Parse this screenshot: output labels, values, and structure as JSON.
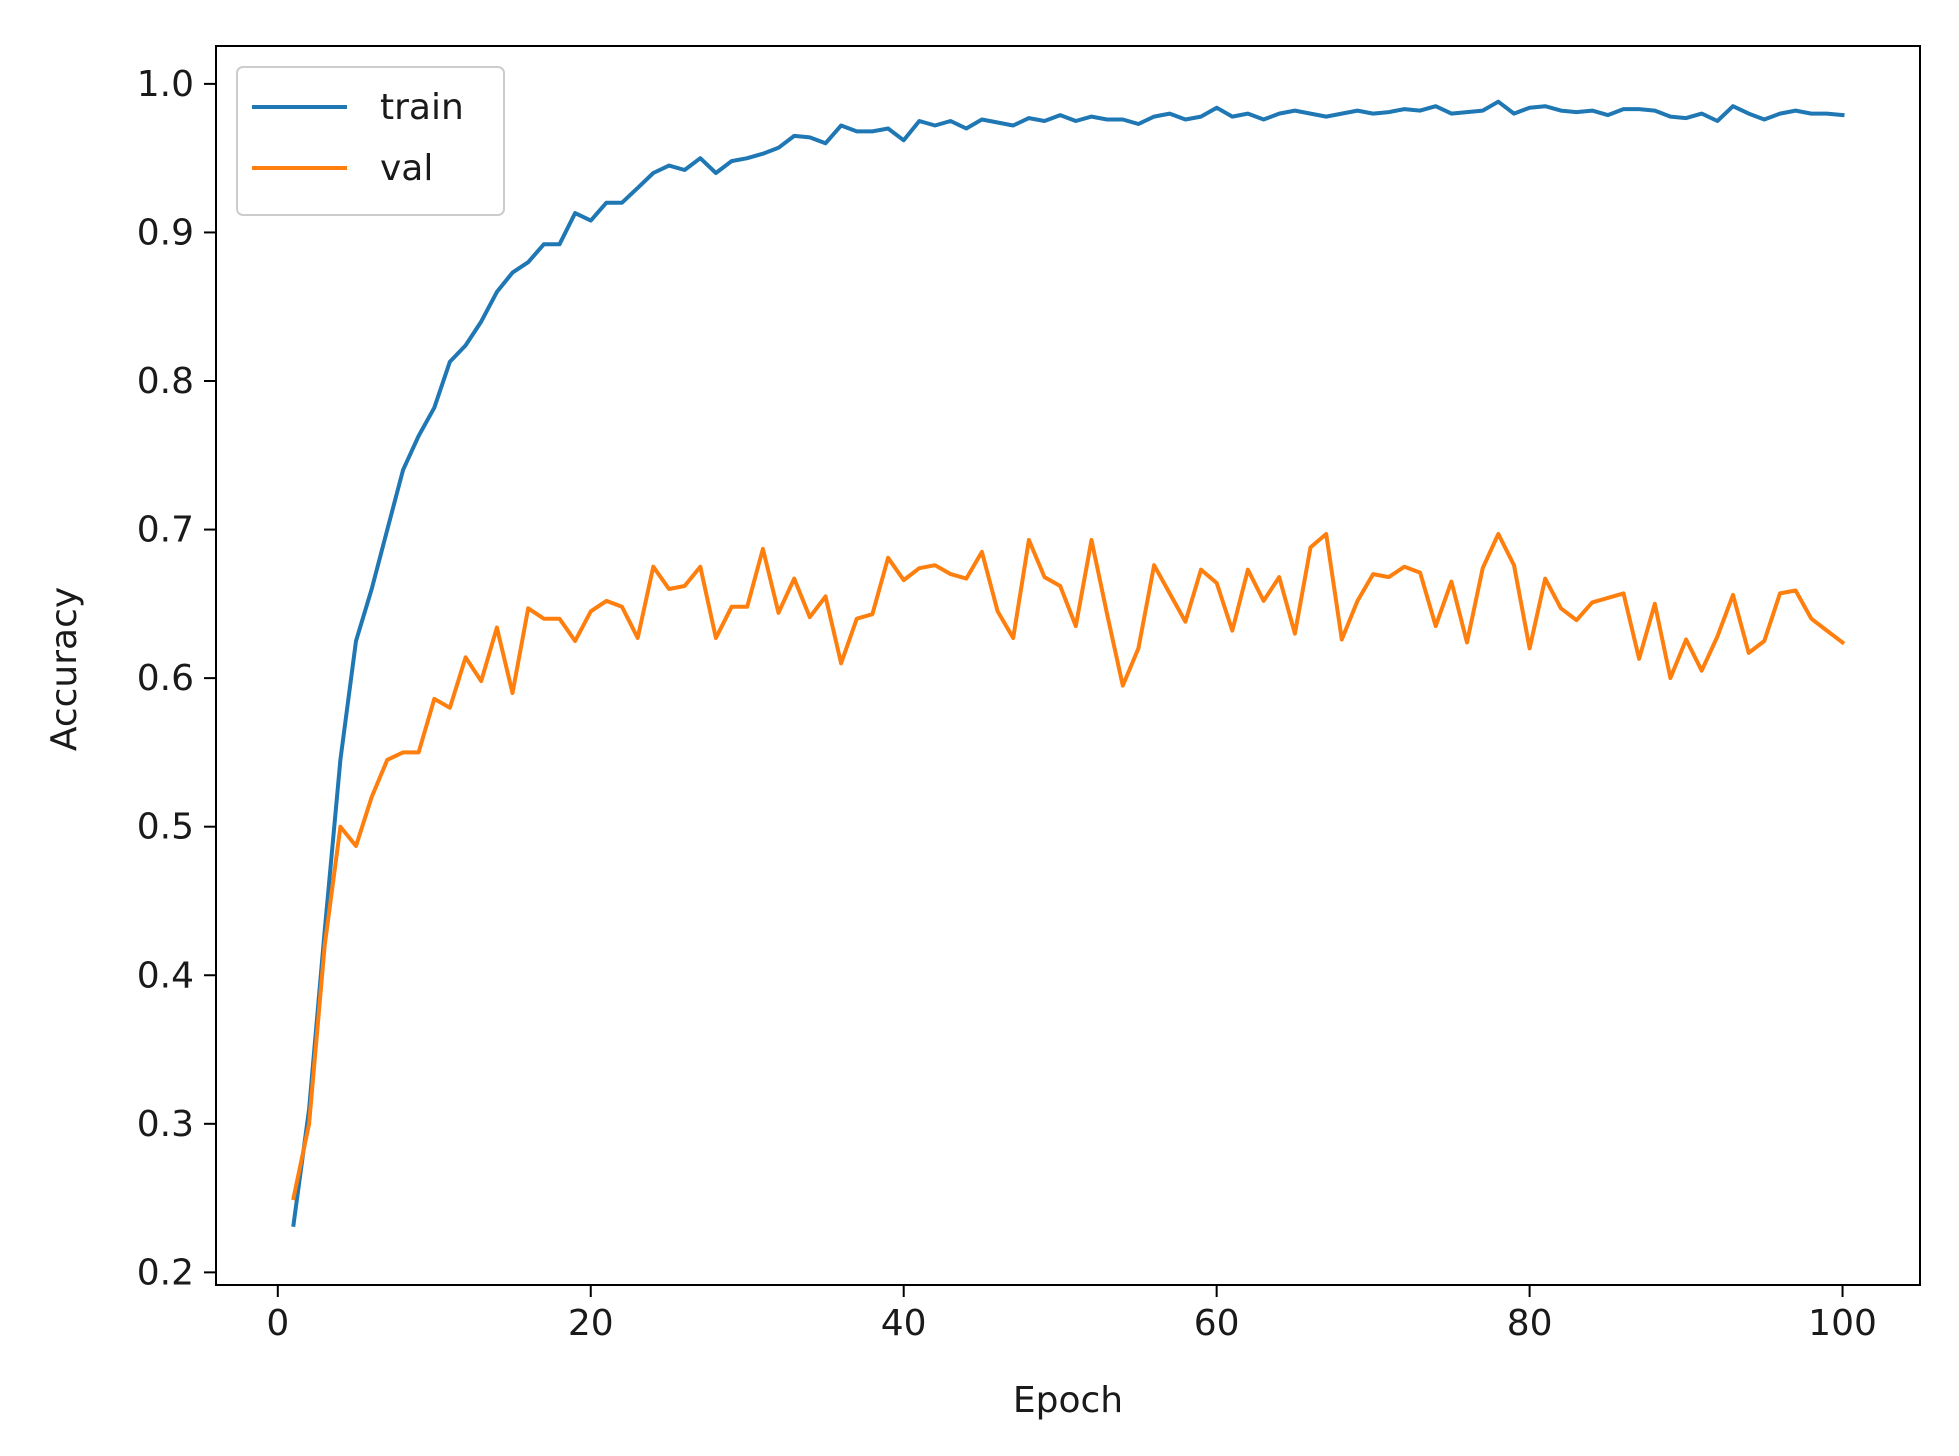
{
  "chart_data": {
    "type": "line",
    "title": "",
    "xlabel": "Epoch",
    "ylabel": "Accuracy",
    "xlim": [
      -3.95,
      104.95
    ],
    "ylim": [
      0.1915,
      1.0255
    ],
    "x_ticks": [
      0,
      20,
      40,
      60,
      80,
      100
    ],
    "y_ticks": [
      0.2,
      0.3,
      0.4,
      0.5,
      0.6,
      0.7,
      0.8,
      0.9,
      1.0
    ],
    "x_tick_labels": [
      "0",
      "20",
      "40",
      "60",
      "80",
      "100"
    ],
    "y_tick_labels": [
      "0.2",
      "0.3",
      "0.4",
      "0.5",
      "0.6",
      "0.7",
      "0.8",
      "0.9",
      "1.0"
    ],
    "grid": false,
    "legend_position": "top-left",
    "x": [
      1,
      2,
      3,
      4,
      5,
      6,
      7,
      8,
      9,
      10,
      11,
      12,
      13,
      14,
      15,
      16,
      17,
      18,
      19,
      20,
      21,
      22,
      23,
      24,
      25,
      26,
      27,
      28,
      29,
      30,
      31,
      32,
      33,
      34,
      35,
      36,
      37,
      38,
      39,
      40,
      41,
      42,
      43,
      44,
      45,
      46,
      47,
      48,
      49,
      50,
      51,
      52,
      53,
      54,
      55,
      56,
      57,
      58,
      59,
      60,
      61,
      62,
      63,
      64,
      65,
      66,
      67,
      68,
      69,
      70,
      71,
      72,
      73,
      74,
      75,
      76,
      77,
      78,
      79,
      80,
      81,
      82,
      83,
      84,
      85,
      86,
      87,
      88,
      89,
      90,
      91,
      92,
      93,
      94,
      95,
      96,
      97,
      98,
      99,
      100
    ],
    "series": [
      {
        "name": "train",
        "color": "#1f77b4",
        "values": [
          0.232,
          0.31,
          0.43,
          0.545,
          0.625,
          0.66,
          0.7,
          0.74,
          0.763,
          0.782,
          0.813,
          0.824,
          0.84,
          0.86,
          0.873,
          0.88,
          0.892,
          0.892,
          0.913,
          0.908,
          0.92,
          0.92,
          0.93,
          0.94,
          0.945,
          0.942,
          0.95,
          0.94,
          0.948,
          0.95,
          0.953,
          0.957,
          0.965,
          0.964,
          0.96,
          0.972,
          0.968,
          0.968,
          0.97,
          0.962,
          0.975,
          0.972,
          0.975,
          0.97,
          0.976,
          0.974,
          0.972,
          0.977,
          0.975,
          0.979,
          0.975,
          0.978,
          0.976,
          0.976,
          0.973,
          0.978,
          0.98,
          0.976,
          0.978,
          0.984,
          0.978,
          0.98,
          0.976,
          0.98,
          0.982,
          0.98,
          0.978,
          0.98,
          0.982,
          0.98,
          0.981,
          0.983,
          0.982,
          0.985,
          0.98,
          0.981,
          0.982,
          0.988,
          0.98,
          0.984,
          0.985,
          0.982,
          0.981,
          0.982,
          0.979,
          0.983,
          0.983,
          0.982,
          0.978,
          0.977,
          0.98,
          0.975,
          0.985,
          0.98,
          0.976,
          0.98,
          0.982,
          0.98,
          0.98,
          0.979
        ]
      },
      {
        "name": "val",
        "color": "#ff7f0e",
        "values": [
          0.25,
          0.3,
          0.42,
          0.5,
          0.487,
          0.52,
          0.545,
          0.55,
          0.55,
          0.586,
          0.58,
          0.614,
          0.598,
          0.634,
          0.59,
          0.647,
          0.64,
          0.64,
          0.625,
          0.645,
          0.652,
          0.648,
          0.627,
          0.675,
          0.66,
          0.662,
          0.675,
          0.627,
          0.648,
          0.648,
          0.687,
          0.644,
          0.667,
          0.641,
          0.655,
          0.61,
          0.64,
          0.643,
          0.681,
          0.666,
          0.674,
          0.676,
          0.67,
          0.667,
          0.685,
          0.645,
          0.627,
          0.693,
          0.668,
          0.662,
          0.635,
          0.693,
          0.643,
          0.595,
          0.62,
          0.676,
          0.657,
          0.638,
          0.673,
          0.664,
          0.632,
          0.673,
          0.652,
          0.668,
          0.63,
          0.688,
          0.697,
          0.626,
          0.652,
          0.67,
          0.668,
          0.675,
          0.671,
          0.635,
          0.665,
          0.624,
          0.674,
          0.697,
          0.676,
          0.62,
          0.667,
          0.647,
          0.639,
          0.651,
          0.654,
          0.657,
          0.613,
          0.65,
          0.6,
          0.626,
          0.605,
          0.628,
          0.656,
          0.617,
          0.625,
          0.657,
          0.659,
          0.64,
          0.632,
          0.624
        ]
      }
    ]
  }
}
